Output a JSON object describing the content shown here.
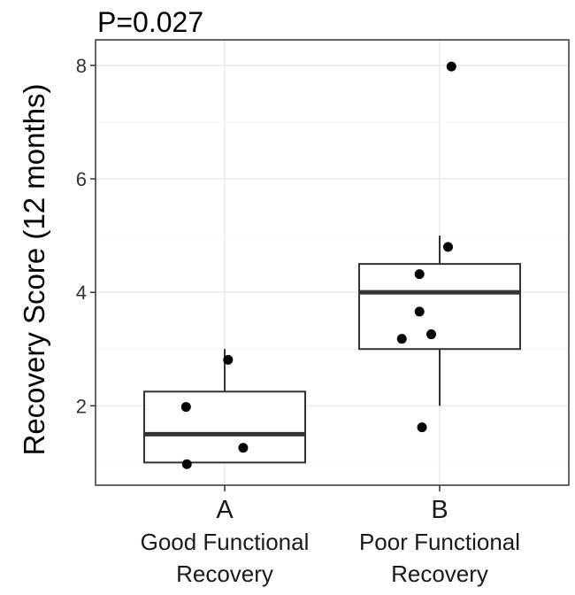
{
  "chart_data": {
    "type": "box",
    "title": "P=0.027",
    "xlabel": "",
    "ylabel": "Recovery Score (12 months)",
    "ylim": [
      0.6,
      8.45
    ],
    "y_ticks": [
      2,
      4,
      6,
      8
    ],
    "grid": true,
    "categories": [
      "A",
      "B"
    ],
    "category_sublabels": [
      [
        "Good Functional",
        "Recovery"
      ],
      [
        "Poor Functional",
        "Recovery"
      ]
    ],
    "boxes": [
      {
        "category": "A",
        "min": 1.0,
        "q1": 1.0,
        "median": 1.5,
        "q3": 2.25,
        "max": 3.0
      },
      {
        "category": "B",
        "min": 2.0,
        "q1": 3.0,
        "median": 4.0,
        "q3": 4.5,
        "max": 5.0
      }
    ],
    "points": [
      {
        "category": "A",
        "jitter": -0.45,
        "y": 0.97
      },
      {
        "category": "A",
        "jitter": -0.46,
        "y": 1.98
      },
      {
        "category": "A",
        "jitter": 0.22,
        "y": 1.26
      },
      {
        "category": "A",
        "jitter": 0.04,
        "y": 2.81
      },
      {
        "category": "B",
        "jitter": 0.14,
        "y": 7.98
      },
      {
        "category": "B",
        "jitter": 0.1,
        "y": 4.8
      },
      {
        "category": "B",
        "jitter": -0.24,
        "y": 4.32
      },
      {
        "category": "B",
        "jitter": -0.24,
        "y": 3.66
      },
      {
        "category": "B",
        "jitter": -0.45,
        "y": 3.18
      },
      {
        "category": "B",
        "jitter": -0.1,
        "y": 3.26
      },
      {
        "category": "B",
        "jitter": -0.21,
        "y": 1.62
      }
    ]
  }
}
